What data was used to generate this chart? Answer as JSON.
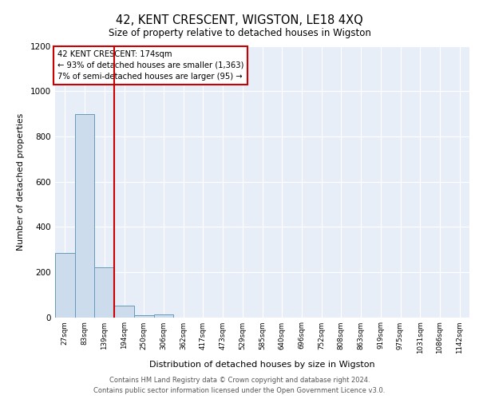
{
  "title": "42, KENT CRESCENT, WIGSTON, LE18 4XQ",
  "subtitle": "Size of property relative to detached houses in Wigston",
  "xlabel": "Distribution of detached houses by size in Wigston",
  "ylabel": "Number of detached properties",
  "bar_labels": [
    "27sqm",
    "83sqm",
    "139sqm",
    "194sqm",
    "250sqm",
    "306sqm",
    "362sqm",
    "417sqm",
    "473sqm",
    "529sqm",
    "585sqm",
    "640sqm",
    "696sqm",
    "752sqm",
    "808sqm",
    "863sqm",
    "919sqm",
    "975sqm",
    "1031sqm",
    "1086sqm",
    "1142sqm"
  ],
  "bar_values": [
    285,
    900,
    220,
    50,
    10,
    13,
    0,
    0,
    0,
    0,
    0,
    0,
    0,
    0,
    0,
    0,
    0,
    0,
    0,
    0,
    0
  ],
  "bar_color": "#ccdcec",
  "bar_edge_color": "#6699bb",
  "ylim": [
    0,
    1200
  ],
  "yticks": [
    0,
    200,
    400,
    600,
    800,
    1000,
    1200
  ],
  "annotation_text": "42 KENT CRESCENT: 174sqm\n← 93% of detached houses are smaller (1,363)\n7% of semi-detached houses are larger (95) →",
  "annotation_box_color": "#ffffff",
  "annotation_border_color": "#cc0000",
  "vline_color": "#cc0000",
  "background_color": "#e8eef8",
  "footer_text": "Contains HM Land Registry data © Crown copyright and database right 2024.\nContains public sector information licensed under the Open Government Licence v3.0.",
  "grid_color": "#ffffff",
  "fig_background": "#ffffff"
}
